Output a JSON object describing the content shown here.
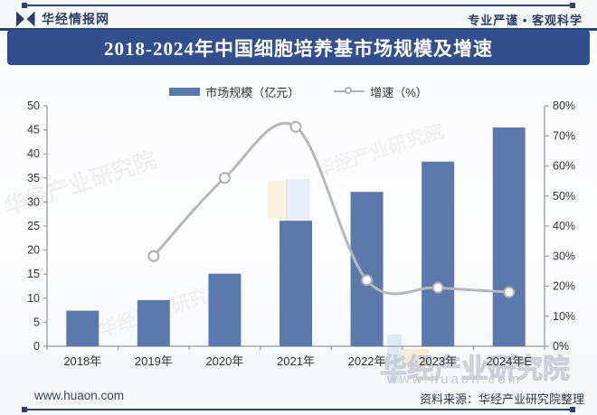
{
  "header": {
    "brand": "华经情报网",
    "slogan": "专业严谨 • 客观科学"
  },
  "title": "2018-2024年中国细胞培养基市场规模及增速",
  "legend": {
    "bar_label": "市场规模（亿元）",
    "line_label": "增速（%）"
  },
  "chart_data": {
    "type": "bar+line",
    "title": "2018-2024年中国细胞培养基市场规模及增速",
    "categories": [
      "2018年",
      "2019年",
      "2020年",
      "2021年",
      "2022年",
      "2023年",
      "2024年E"
    ],
    "series": [
      {
        "name": "市场规模（亿元）",
        "type": "bar",
        "axis": "left",
        "values": [
          7.4,
          9.6,
          15.1,
          26.1,
          32.1,
          38.4,
          45.5
        ]
      },
      {
        "name": "增速（%）",
        "type": "line",
        "axis": "right",
        "values": [
          null,
          30,
          56,
          73,
          22,
          19.5,
          18
        ]
      }
    ],
    "left_axis": {
      "min": 0,
      "max": 50,
      "step": 5,
      "ticks": [
        "0",
        "5",
        "10",
        "15",
        "20",
        "25",
        "30",
        "35",
        "40",
        "45",
        "50"
      ]
    },
    "right_axis": {
      "min": 0,
      "max": 80,
      "step": 10,
      "ticks": [
        "0%",
        "10%",
        "20%",
        "30%",
        "40%",
        "50%",
        "60%",
        "70%",
        "80%"
      ]
    },
    "grid": false,
    "legend_position": "top"
  },
  "watermarks": {
    "name_text": "华经产业研究院",
    "url_text": "www.huaon.com"
  },
  "footer": {
    "site": "www.huaon.com",
    "source": "资料来源：华经产业研究院整理"
  },
  "colors": {
    "bar": "#5b7aab",
    "line": "#b8b8b8",
    "marker_stroke": "#aeaeae",
    "banner": "#334f8d",
    "divider": "#2a4579",
    "navy_text": "#2c3c62",
    "axis": "#9a9a9a",
    "tick_text": "#333333",
    "wm_blue": "#b8cfe8",
    "wm_yellow": "#f2d795"
  }
}
